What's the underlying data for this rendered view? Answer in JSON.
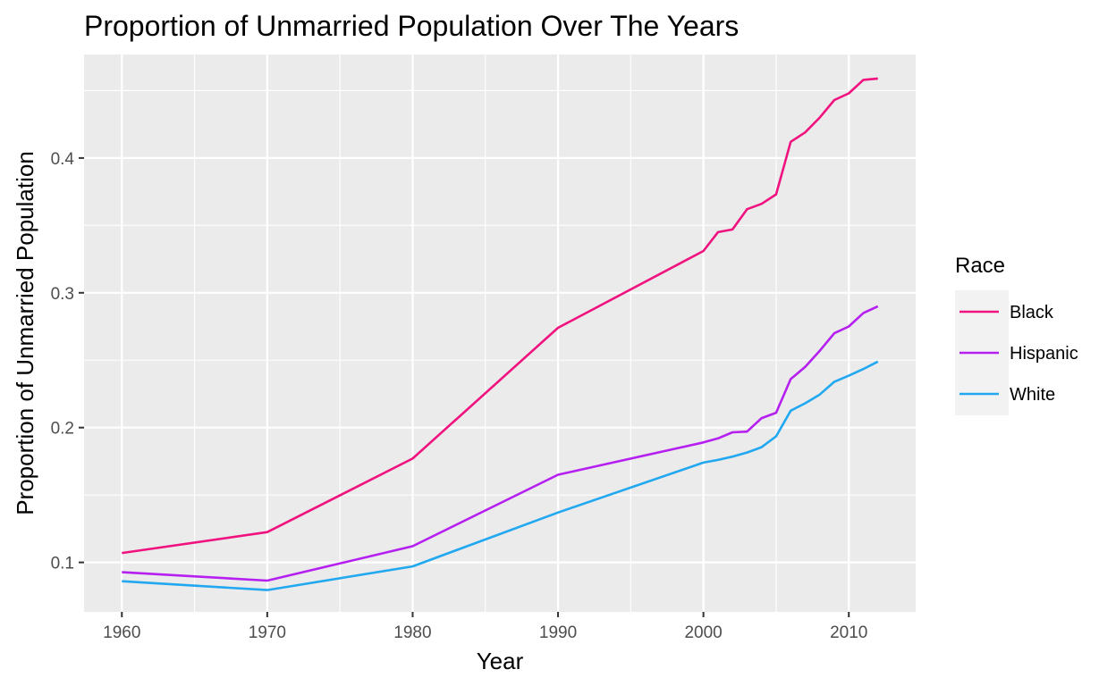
{
  "chart_data": {
    "type": "line",
    "title": "Proportion of Unmarried Population Over The Years",
    "xlabel": "Year",
    "ylabel": "Proportion of Unmarried Population",
    "xlim": [
      1957.4,
      2014.6
    ],
    "ylim": [
      0.0633,
      0.4768
    ],
    "x_ticks": [
      1960,
      1970,
      1980,
      1990,
      2000,
      2010
    ],
    "y_ticks": [
      0.1,
      0.2,
      0.3,
      0.4
    ],
    "x_tick_labels": [
      "1960",
      "1970",
      "1980",
      "1990",
      "2000",
      "2010"
    ],
    "y_tick_labels": [
      "0.1",
      "0.2",
      "0.3",
      "0.4"
    ],
    "grid": true,
    "legend_title": "Race",
    "legend_position": "right",
    "series": [
      {
        "name": "Black",
        "color": "#F0127F",
        "x": [
          1960,
          1970,
          1980,
          1990,
          2000,
          2001,
          2002,
          2003,
          2004,
          2005,
          2006,
          2007,
          2008,
          2009,
          2010,
          2011,
          2012
        ],
        "y": [
          0.107,
          0.1225,
          0.177,
          0.274,
          0.331,
          0.345,
          0.347,
          0.362,
          0.366,
          0.373,
          0.412,
          0.419,
          0.43,
          0.443,
          0.448,
          0.458,
          0.459
        ]
      },
      {
        "name": "Hispanic",
        "color": "#B520F0",
        "x": [
          1960,
          1970,
          1980,
          1990,
          2000,
          2001,
          2002,
          2003,
          2004,
          2005,
          2006,
          2007,
          2008,
          2009,
          2010,
          2011,
          2012
        ],
        "y": [
          0.0927,
          0.0865,
          0.112,
          0.165,
          0.189,
          0.192,
          0.1965,
          0.197,
          0.207,
          0.211,
          0.236,
          0.245,
          0.257,
          0.27,
          0.275,
          0.285,
          0.29
        ]
      },
      {
        "name": "White",
        "color": "#22A8F0",
        "x": [
          1960,
          1970,
          1980,
          1990,
          2000,
          2001,
          2002,
          2003,
          2004,
          2005,
          2006,
          2007,
          2008,
          2009,
          2010,
          2011,
          2012
        ],
        "y": [
          0.086,
          0.0795,
          0.097,
          0.137,
          0.174,
          0.176,
          0.1785,
          0.1815,
          0.1855,
          0.1935,
          0.2125,
          0.218,
          0.2245,
          0.234,
          0.2385,
          0.2435,
          0.249
        ]
      }
    ]
  }
}
